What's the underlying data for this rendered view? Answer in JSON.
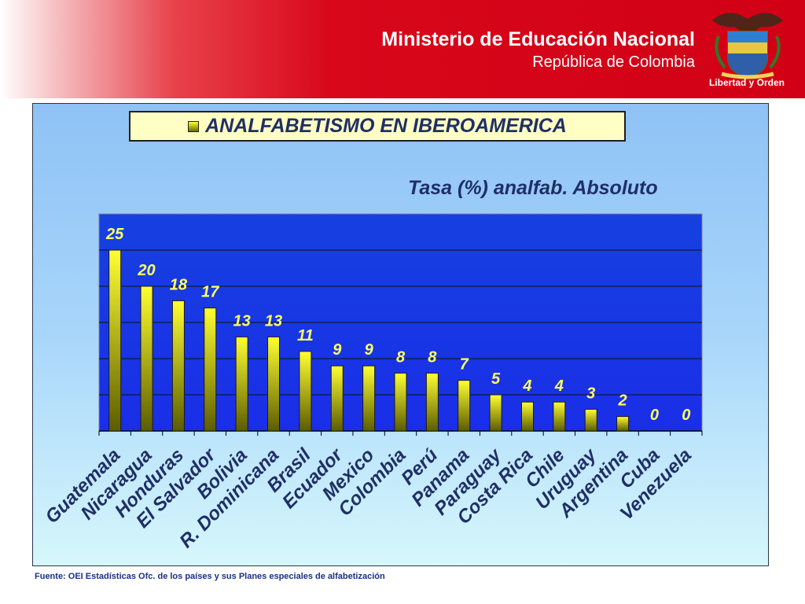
{
  "header": {
    "title": "Ministerio de Educación Nacional",
    "subtitle": "República de Colombia",
    "seal_motto": "Libertad y Orden",
    "seal_icon": "colombia-coat-of-arms-icon"
  },
  "colors": {
    "header_red": "#d20015",
    "plot_background": "#1a2ee8",
    "bar_top": "#ffff33",
    "bar_bottom": "#5c5c00",
    "label_text": "#1f2f66",
    "value_text": "#ffff66",
    "source_text": "#1a2f8a"
  },
  "chart_data": {
    "type": "bar",
    "title": "ANALFABETISMO EN IBEROAMERICA",
    "categories": [
      "Guatemala",
      "Nicaragua",
      "Honduras",
      "El Salvador",
      "Bolivia",
      "R. Dominicana",
      "Brasil",
      "Ecuador",
      "Mexico",
      "Colombia",
      "Perú",
      "Panama",
      "Paraguay",
      "Costa Rica",
      "Chile",
      "Uruguay",
      "Argentina",
      "Cuba",
      "Venezuela"
    ],
    "series": [
      {
        "name": "Tasa (%) analfab. Absoluto",
        "values": [
          25,
          20,
          18,
          17,
          13,
          13,
          11,
          9,
          9,
          8,
          8,
          7,
          5,
          4,
          4,
          3,
          2,
          0,
          0
        ]
      }
    ],
    "ylim": [
      0,
      30
    ],
    "grid": true,
    "legend": "top",
    "data_labels": true
  },
  "source_note": "Fuente: OEI Estadísticas Ofc. de los países y sus Planes especiales de alfabetización"
}
